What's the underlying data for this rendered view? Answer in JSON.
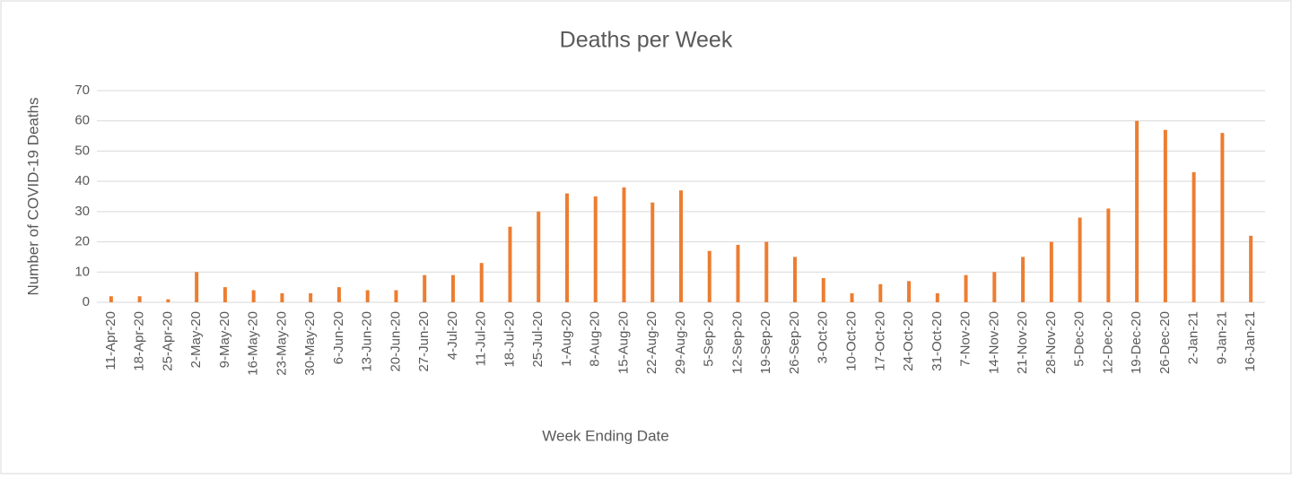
{
  "chart_data": {
    "type": "bar",
    "title": "Deaths per Week",
    "x_label": "Week Ending Date",
    "y_label": "Number of COVID-19 Deaths",
    "categories": [
      "11-Apr-20",
      "18-Apr-20",
      "25-Apr-20",
      "2-May-20",
      "9-May-20",
      "16-May-20",
      "23-May-20",
      "30-May-20",
      "6-Jun-20",
      "13-Jun-20",
      "20-Jun-20",
      "27-Jun-20",
      "4-Jul-20",
      "11-Jul-20",
      "18-Jul-20",
      "25-Jul-20",
      "1-Aug-20",
      "8-Aug-20",
      "15-Aug-20",
      "22-Aug-20",
      "29-Aug-20",
      "5-Sep-20",
      "12-Sep-20",
      "19-Sep-20",
      "26-Sep-20",
      "3-Oct-20",
      "10-Oct-20",
      "17-Oct-20",
      "24-Oct-20",
      "31-Oct-20",
      "7-Nov-20",
      "14-Nov-20",
      "21-Nov-20",
      "28-Nov-20",
      "5-Dec-20",
      "12-Dec-20",
      "19-Dec-20",
      "26-Dec-20",
      "2-Jan-21",
      "9-Jan-21",
      "16-Jan-21"
    ],
    "values": [
      2,
      2,
      1,
      10,
      5,
      4,
      3,
      3,
      5,
      4,
      4,
      9,
      9,
      13,
      25,
      30,
      36,
      35,
      38,
      33,
      37,
      17,
      19,
      20,
      15,
      8,
      3,
      6,
      7,
      3,
      9,
      10,
      15,
      20,
      28,
      31,
      60,
      57,
      43,
      56,
      22
    ],
    "color": "#ed7d31",
    "ylim": [
      0,
      70
    ],
    "yticks": [
      0,
      10,
      20,
      30,
      40,
      50,
      60,
      70
    ],
    "grid": true
  }
}
